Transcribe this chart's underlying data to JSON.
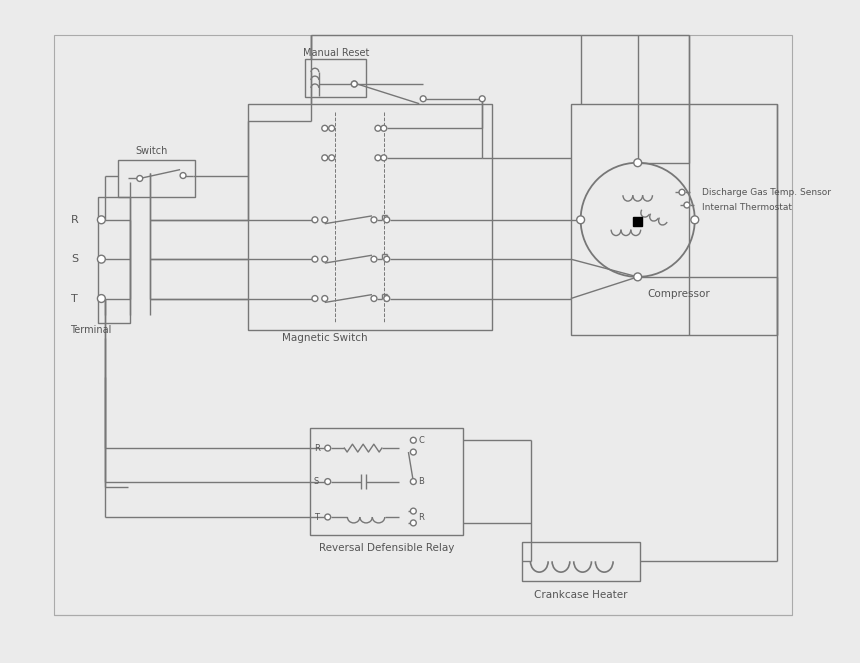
{
  "bg_color": "#ebebeb",
  "lc": "#777777",
  "lc_dark": "#555555",
  "lw": 1.0,
  "labels": {
    "switch": "Switch",
    "manual_reset": "Manual Reset",
    "magnetic_switch": "Magnetic Switch",
    "terminal": "Terminal",
    "compressor": "Compressor",
    "discharge": "Discharge Gas Temp. Sensor",
    "internal_thermo": "Internal Thermostat",
    "relay": "Reversal Defensible Relay",
    "crankcase": "Crankcase Heater"
  }
}
